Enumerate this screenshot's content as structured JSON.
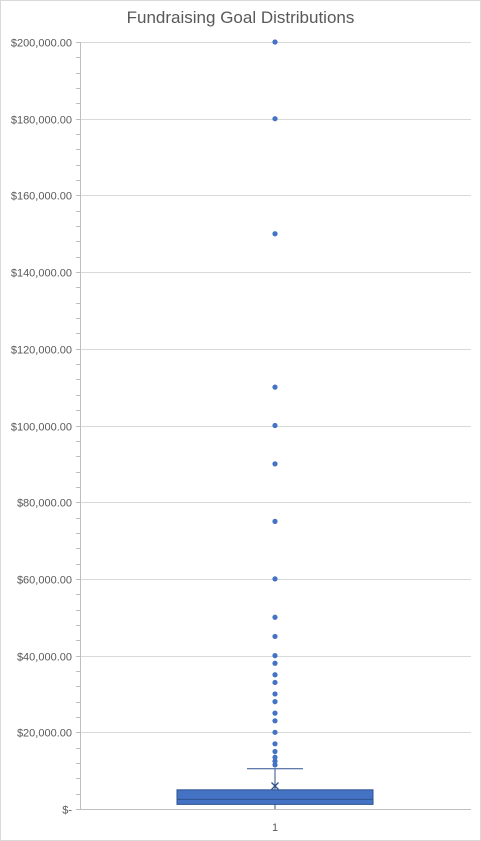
{
  "chart_data": {
    "type": "box",
    "title": "Fundraising Goal Distributions",
    "xlabel": "",
    "ylabel": "",
    "categories": [
      "1"
    ],
    "ylim": [
      0,
      200000
    ],
    "y_ticks": [
      0,
      20000,
      40000,
      60000,
      80000,
      100000,
      120000,
      140000,
      160000,
      180000,
      200000
    ],
    "y_tick_labels": [
      "$-",
      "$20,000.00",
      "$40,000.00",
      "$60,000.00",
      "$80,000.00",
      "$100,000.00",
      "$120,000.00",
      "$140,000.00",
      "$160,000.00",
      "$180,000.00",
      "$200,000.00"
    ],
    "grid": true,
    "box": {
      "q1": 1200,
      "median": 2500,
      "q3": 5000,
      "min": 0,
      "whisker_high": 10500,
      "mean": 6000
    },
    "outliers": [
      200000,
      180000,
      150000,
      110000,
      100000,
      90000,
      75000,
      60000,
      50000,
      45000,
      40000,
      38000,
      35000,
      33000,
      30000,
      28000,
      25000,
      23000,
      20000,
      17000,
      15000,
      13500,
      12500,
      11500
    ],
    "colors": {
      "box_fill": "#4472c4",
      "box_stroke": "#2f528f",
      "grid": "#d9d9d9",
      "axis": "#bfbfbf",
      "text": "#595959"
    }
  }
}
